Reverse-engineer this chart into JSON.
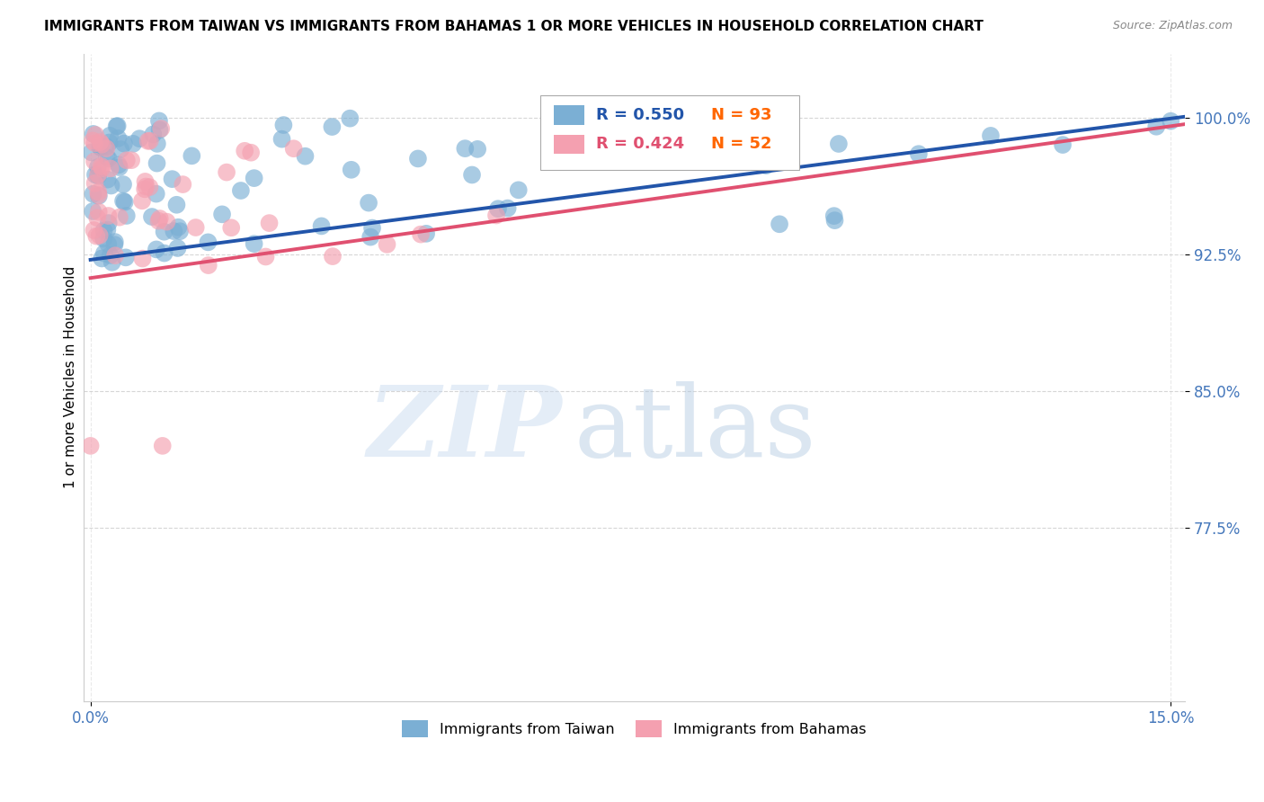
{
  "title": "IMMIGRANTS FROM TAIWAN VS IMMIGRANTS FROM BAHAMAS 1 OR MORE VEHICLES IN HOUSEHOLD CORRELATION CHART",
  "source": "Source: ZipAtlas.com",
  "ylabel": "1 or more Vehicles in Household",
  "ytick_labels": [
    "100.0%",
    "92.5%",
    "85.0%",
    "77.5%"
  ],
  "ytick_values": [
    1.0,
    0.925,
    0.85,
    0.775
  ],
  "xlim": [
    0.0,
    0.15
  ],
  "ylim": [
    0.68,
    1.035
  ],
  "taiwan_R": 0.55,
  "taiwan_N": 93,
  "bahamas_R": 0.424,
  "bahamas_N": 52,
  "taiwan_color": "#7BAFD4",
  "bahamas_color": "#F4A0B0",
  "taiwan_line_color": "#2255AA",
  "bahamas_line_color": "#E05070",
  "taiwan_legend_color": "#4477BB",
  "n_color": "#FF6600",
  "watermark_zip_color": "#C8D8E8",
  "watermark_atlas_color": "#B0C8E0",
  "background_color": "#FFFFFF",
  "grid_color": "#CCCCCC",
  "tick_color": "#4477BB",
  "title_color": "#000000",
  "source_color": "#888888"
}
